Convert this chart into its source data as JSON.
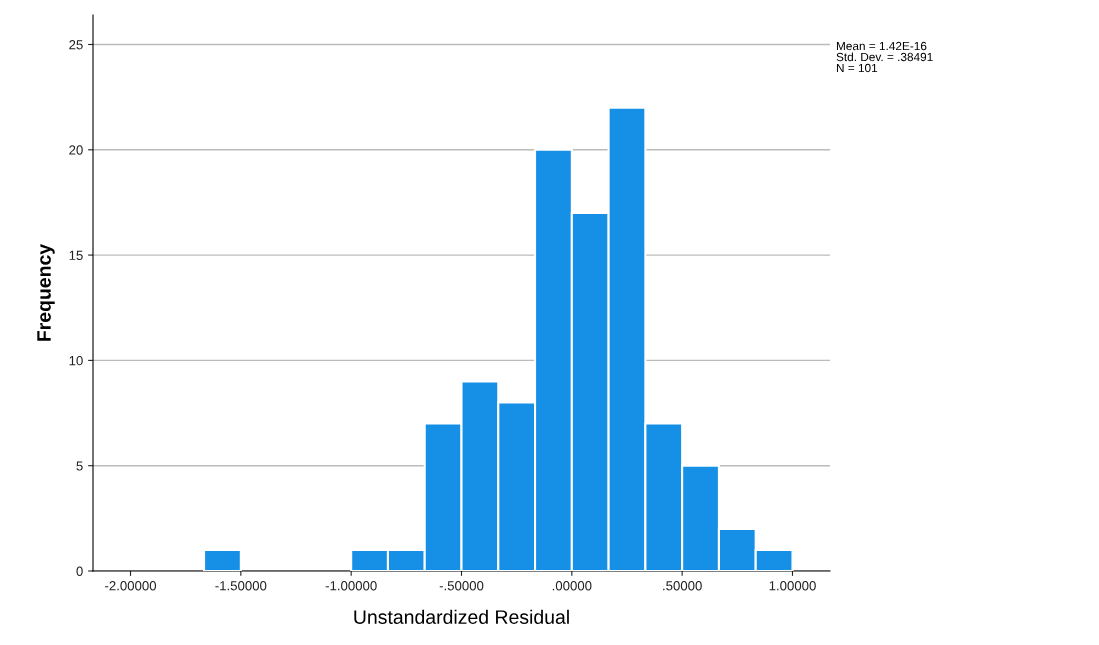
{
  "chart_data": {
    "type": "histogram",
    "xlabel": "Unstandardized Residual",
    "ylabel": "Frequency",
    "bins": [
      -1.6667,
      -1.5,
      -1.3333,
      -1.1667,
      -1.0,
      -0.8333,
      -0.6667,
      -0.5,
      -0.3333,
      -0.1667,
      0.0,
      0.1667,
      0.3333,
      0.5,
      0.6667,
      0.8333,
      1.0
    ],
    "values": [
      1,
      0,
      0,
      0,
      1,
      1,
      7,
      9,
      8,
      20,
      17,
      22,
      7,
      5,
      2,
      1
    ],
    "color": "#1590e6",
    "xlim": [
      -2.17,
      1.17
    ],
    "ylim": [
      0,
      26.4
    ],
    "xticks": [
      {
        "value": -2.0,
        "label": "-2.00000"
      },
      {
        "value": -1.5,
        "label": "-1.50000"
      },
      {
        "value": -1.0,
        "label": "-1.00000"
      },
      {
        "value": -0.5,
        "label": "-.50000"
      },
      {
        "value": 0.0,
        "label": ".00000"
      },
      {
        "value": 0.5,
        "label": ".50000"
      },
      {
        "value": 1.0,
        "label": "1.00000"
      }
    ],
    "yticks": [
      0,
      5,
      10,
      15,
      20,
      25
    ],
    "grid": "y",
    "annotations": [
      "Mean = 1.42E-16",
      "Std. Dev. = .38491",
      "N = 101"
    ]
  }
}
